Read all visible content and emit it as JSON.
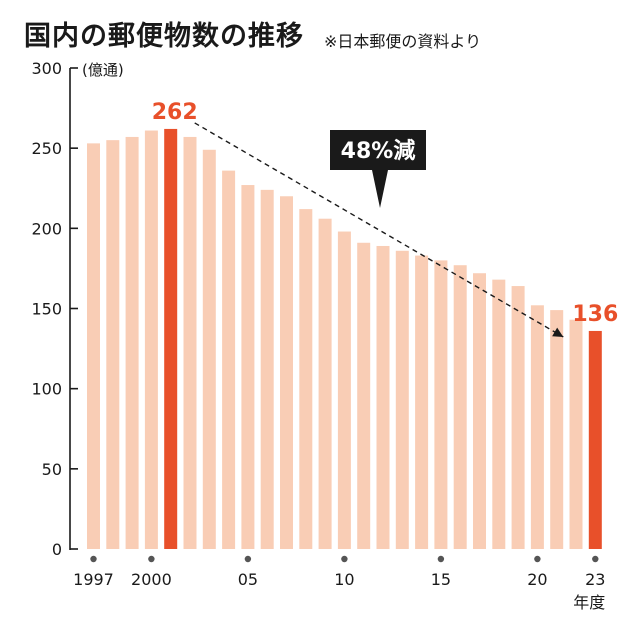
{
  "title": "国内の郵便物数の推移",
  "source": "※日本郵便の資料より",
  "colors": {
    "bar": "#f9cdb5",
    "highlight": "#e8502a",
    "text": "#1a1a1a",
    "callout_bg": "#1a1a1a",
    "callout_text": "#ffffff"
  },
  "chart_data": {
    "type": "bar",
    "unit": "(億通)",
    "xlabel": "年度",
    "ylim": [
      0,
      300
    ],
    "yticks": [
      0,
      50,
      100,
      150,
      200,
      250,
      300
    ],
    "categories": [
      "1997",
      "1998",
      "1999",
      "2000",
      "2001",
      "2002",
      "2003",
      "2004",
      "2005",
      "2006",
      "2007",
      "2008",
      "2009",
      "2010",
      "2011",
      "2012",
      "2013",
      "2014",
      "2015",
      "2016",
      "2017",
      "2018",
      "2019",
      "2020",
      "2021",
      "2022",
      "2023"
    ],
    "values": [
      253,
      255,
      257,
      261,
      262,
      257,
      249,
      236,
      227,
      224,
      220,
      212,
      206,
      198,
      191,
      189,
      186,
      183,
      180,
      177,
      172,
      168,
      164,
      152,
      149,
      143,
      136
    ],
    "xtick_labels": [
      {
        "category": "1997",
        "label": "1997"
      },
      {
        "category": "2000",
        "label": "2000"
      },
      {
        "category": "2005",
        "label": "05"
      },
      {
        "category": "2010",
        "label": "10"
      },
      {
        "category": "2015",
        "label": "15"
      },
      {
        "category": "2020",
        "label": "20"
      },
      {
        "category": "2023",
        "label": "23"
      }
    ],
    "highlights": [
      {
        "category": "2001",
        "label": "262"
      },
      {
        "category": "2023",
        "label": "136"
      }
    ],
    "annotation": {
      "text": "48%減",
      "from": "2001",
      "to": "2023"
    }
  }
}
